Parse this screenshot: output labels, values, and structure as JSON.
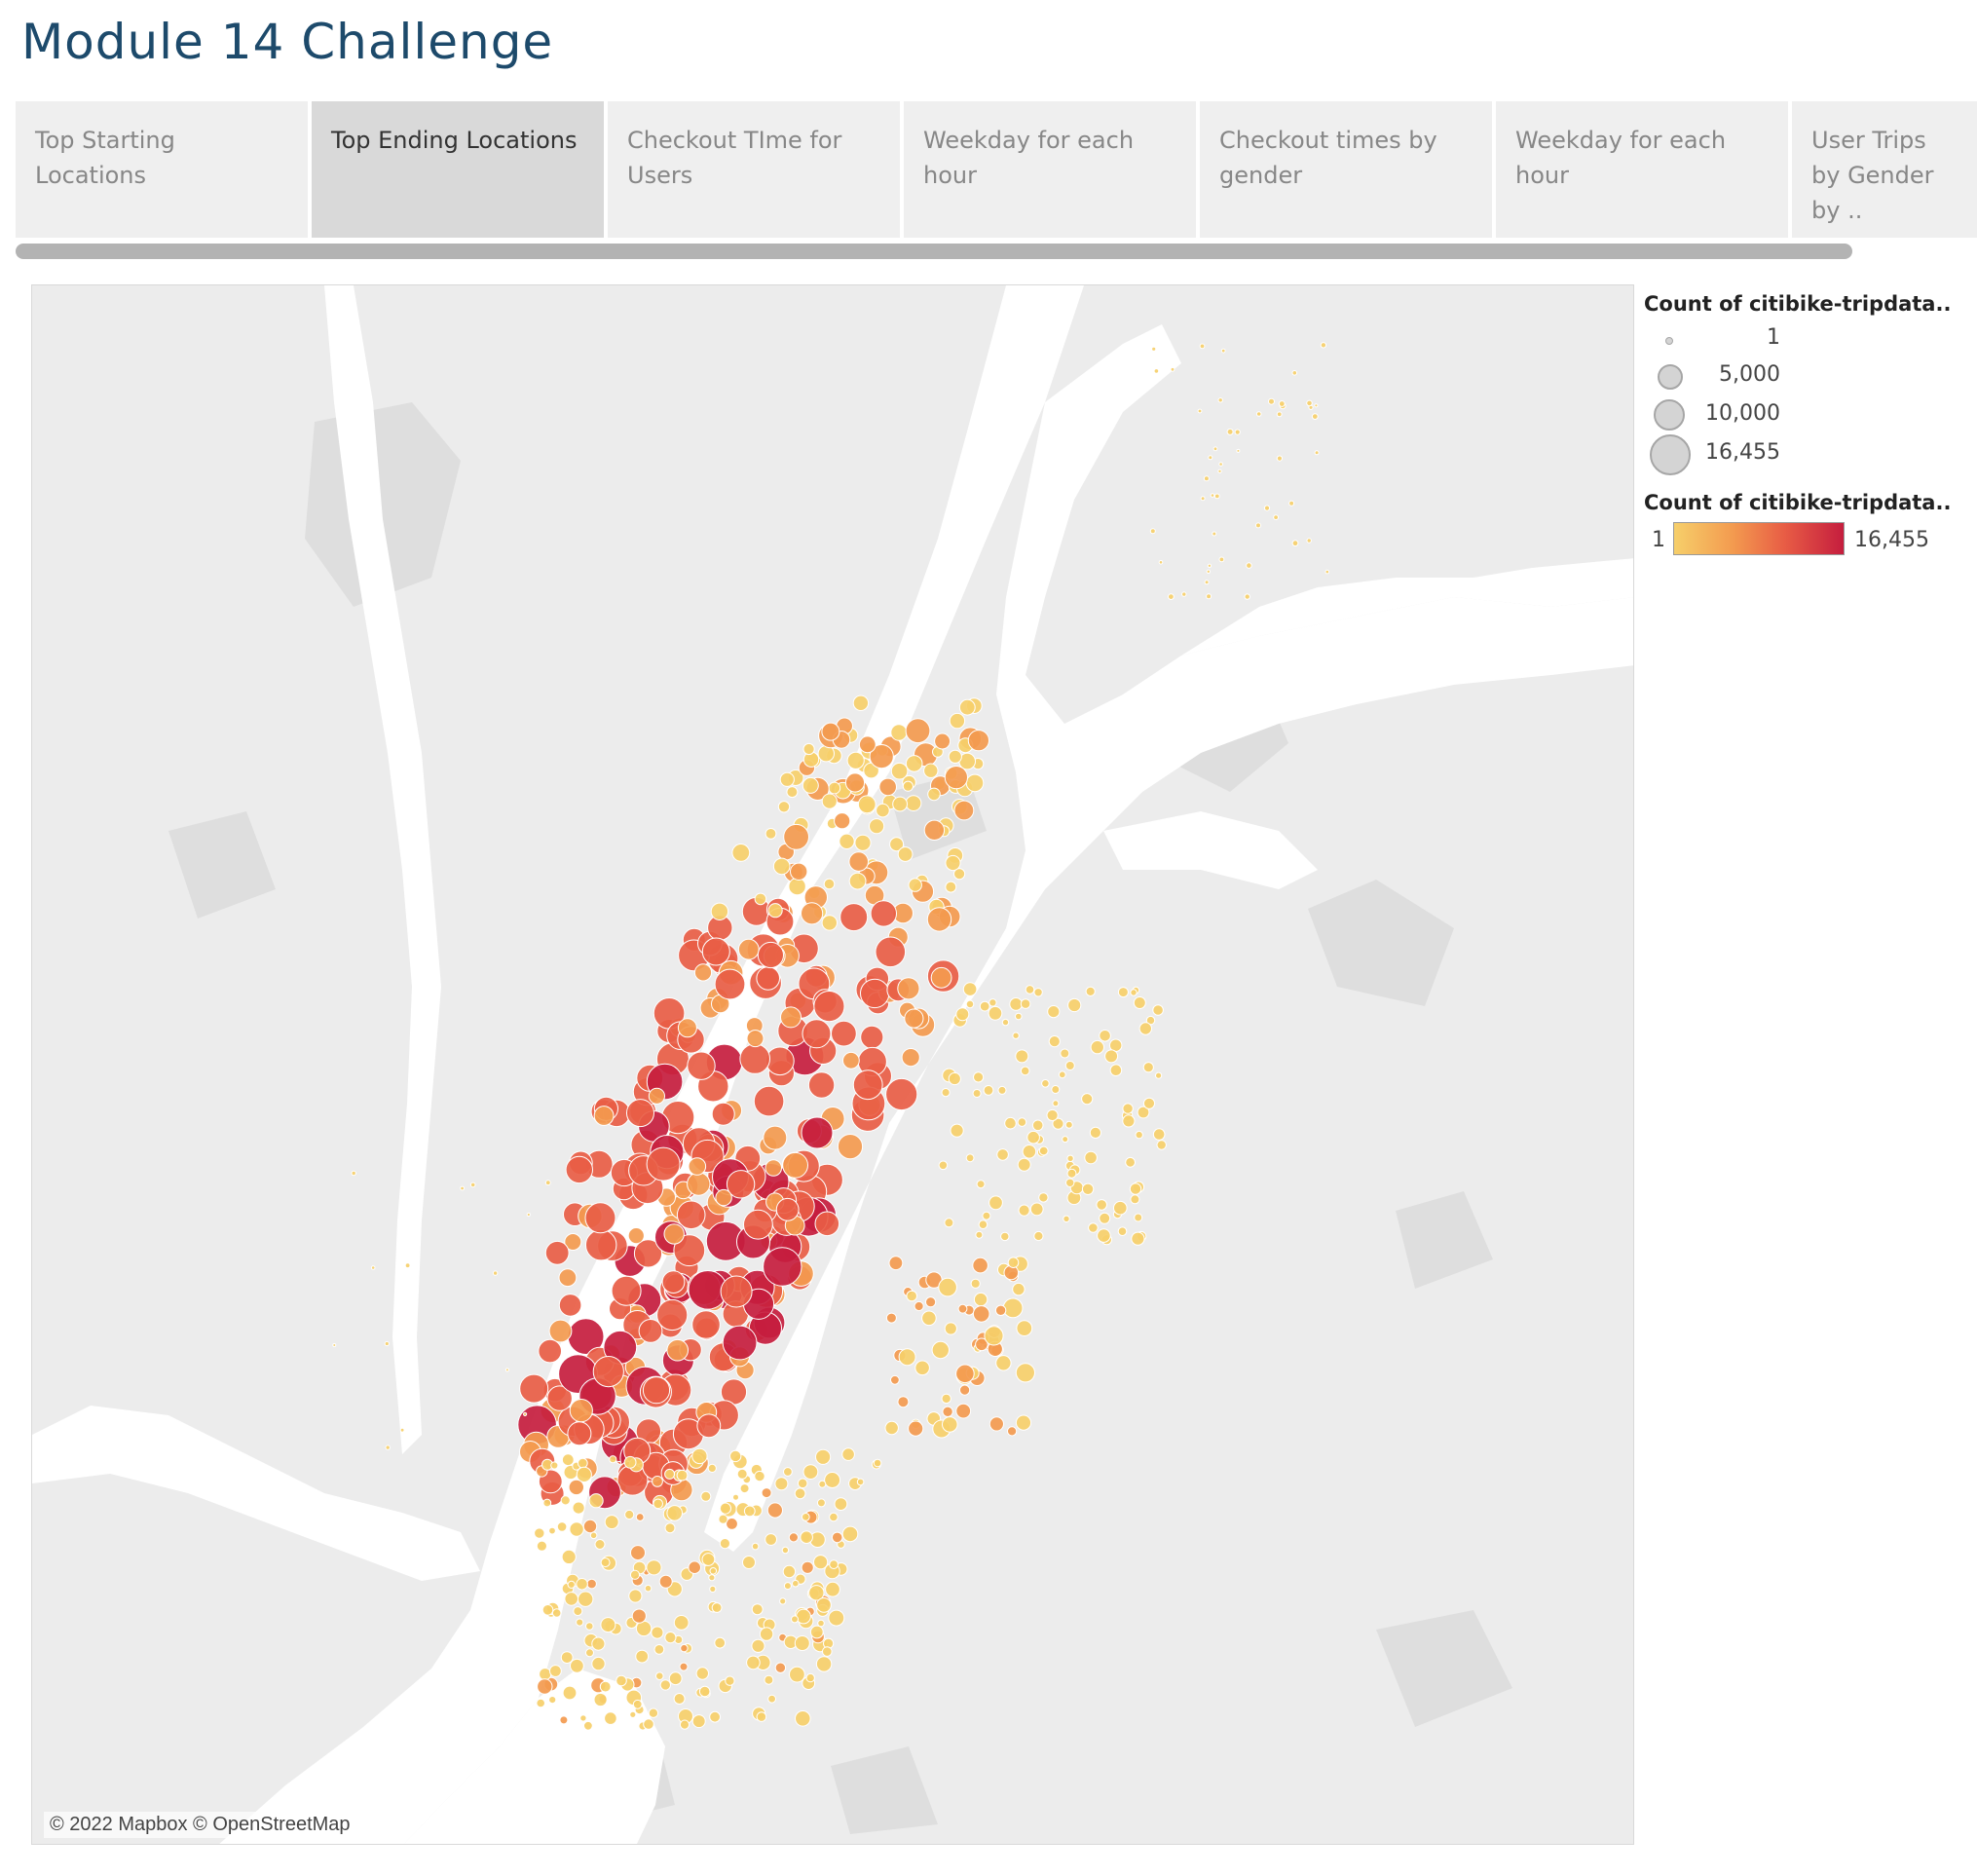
{
  "page": {
    "title": "Module 14 Challenge"
  },
  "tabs": [
    {
      "label": "Top Starting Locations",
      "active": false
    },
    {
      "label": "Top Ending Locations",
      "active": true
    },
    {
      "label": "Checkout TIme for Users",
      "active": false
    },
    {
      "label": "Weekday for each hour",
      "active": false
    },
    {
      "label": "Checkout times by gender",
      "active": false
    },
    {
      "label": "Weekday for each hour",
      "active": false
    },
    {
      "label": "User Trips by Gender by ..",
      "active": false
    }
  ],
  "map": {
    "attribution": "© 2022 Mapbox © OpenStreetMap",
    "colors": {
      "water": "#ffffff",
      "land": "#ececec",
      "park": "#dcdcdc",
      "low": "#f6cf6a",
      "mid": "#f39a4f",
      "high": "#e85d45",
      "max": "#c51d3e"
    }
  },
  "legend": {
    "size_title": "Count of citibike-tripdata..",
    "size_items": [
      {
        "label": "1"
      },
      {
        "label": "5,000"
      },
      {
        "label": "10,000"
      },
      {
        "label": "16,455"
      }
    ],
    "color_title": "Count of citibike-tripdata..",
    "color_min": "1",
    "color_max": "16,455"
  }
}
